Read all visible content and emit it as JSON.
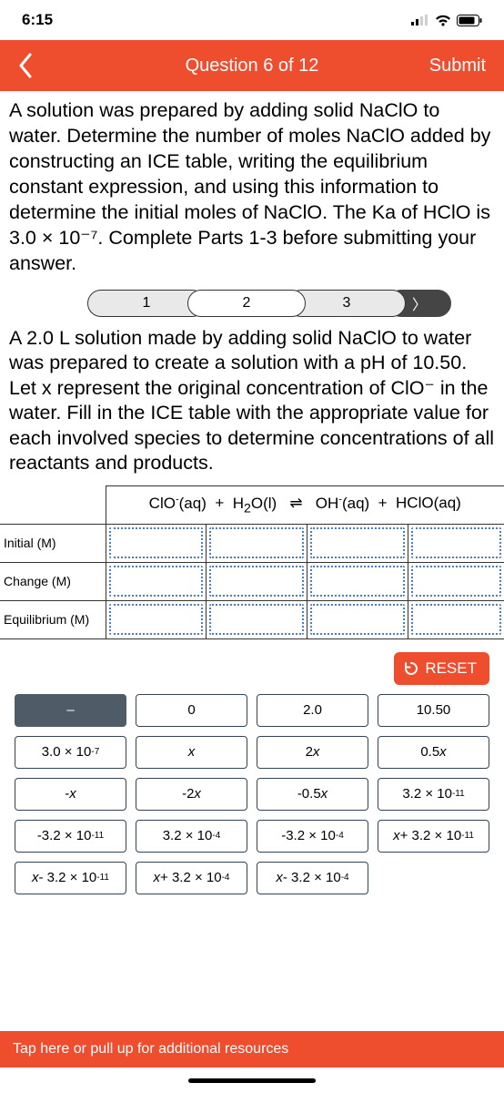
{
  "colors": {
    "accent": "#ee4d2e",
    "tile_border": "#345",
    "tile_selected_bg": "#4f5b66",
    "slot_border": "#4a7dc7"
  },
  "status": {
    "time": "6:15"
  },
  "header": {
    "title": "Question 6 of 12",
    "submit": "Submit"
  },
  "question": "A solution was prepared by adding solid NaClO to water. Determine the number of moles NaClO added by constructing an ICE table, writing the equilibrium constant expression, and using this information to determine the initial moles of NaClO. The Ka of HClO is 3.0 × 10⁻⁷. Complete Parts 1-3 before submitting your answer.",
  "parts": {
    "labels": [
      "1",
      "2",
      "3"
    ],
    "next_glyph": "〉",
    "selected": 2
  },
  "subquestion": "A 2.0 L solution made by adding solid NaClO to water was prepared to create a solution with a pH of 10.50. Let x represent the original concentration of ClO⁻ in the water. Fill in the ICE table with the appropriate value for each involved species to determine concentrations of all reactants and products.",
  "ice": {
    "equation": {
      "c1": "ClO⁻(aq)",
      "plus": "+",
      "c2": "H₂O(l)",
      "eq": "⇌",
      "c3": "OH⁻(aq)",
      "plus2": "+",
      "c4": "HClO(aq)"
    },
    "rows": [
      "Initial (M)",
      "Change (M)",
      "Equilibrium (M)"
    ]
  },
  "reset_label": "RESET",
  "tiles": [
    {
      "html": "–",
      "selected": true
    },
    {
      "html": "0"
    },
    {
      "html": "2.0"
    },
    {
      "html": "10.50"
    },
    {
      "html": "3.0 × 10<sup>-7</sup>"
    },
    {
      "html": "<i>x</i>"
    },
    {
      "html": "2<i>x</i>"
    },
    {
      "html": "0.5<i>x</i>"
    },
    {
      "html": "-<i>x</i>"
    },
    {
      "html": "-2<i>x</i>"
    },
    {
      "html": "-0.5<i>x</i>"
    },
    {
      "html": "3.2 × 10<sup>-11</sup>"
    },
    {
      "html": "-3.2 × 10<sup>-11</sup>"
    },
    {
      "html": "3.2 × 10<sup>-4</sup>"
    },
    {
      "html": "-3.2 × 10<sup>-4</sup>"
    },
    {
      "html": "<i>x</i> + 3.2 × 10<sup>-11</sup>"
    },
    {
      "html": "<i>x</i> - 3.2 × 10<sup>-11</sup>"
    },
    {
      "html": "<i>x</i> + 3.2 × 10<sup>-4</sup>"
    },
    {
      "html": "<i>x</i> - 3.2 × 10<sup>-4</sup>"
    }
  ],
  "bottom": "Tap here or pull up for additional resources"
}
